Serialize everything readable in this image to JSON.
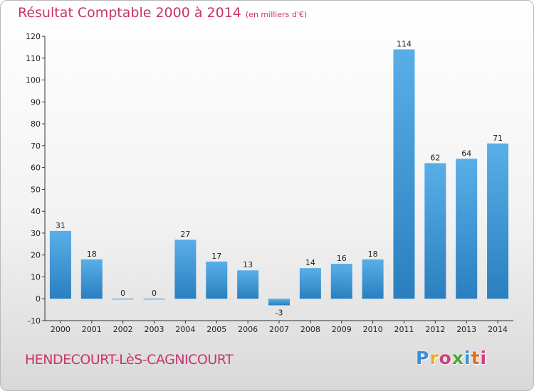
{
  "header": {
    "title": "Résultat Comptable 2000 à 2014",
    "unit": "(en milliers d'€)"
  },
  "footer": {
    "commune": "HENDECOURT-LèS-CAGNICOURT",
    "logo": "Proxiti"
  },
  "colors": {
    "title": "#c8346e",
    "bar_top": "#5aaee8",
    "bar_bottom": "#2a7fbf"
  },
  "chart_data": {
    "type": "bar",
    "title": "Résultat Comptable 2000 à 2014",
    "subtitle": "(en milliers d'€)",
    "categories": [
      "2000",
      "2001",
      "2002",
      "2003",
      "2004",
      "2005",
      "2006",
      "2007",
      "2008",
      "2009",
      "2010",
      "2011",
      "2012",
      "2013",
      "2014"
    ],
    "values": [
      31,
      18,
      0,
      0,
      27,
      17,
      13,
      -3,
      14,
      16,
      18,
      114,
      62,
      64,
      71
    ],
    "ylim": [
      -10,
      120
    ],
    "yticks": [
      -10,
      0,
      10,
      20,
      30,
      40,
      50,
      60,
      70,
      80,
      90,
      100,
      110,
      120
    ],
    "grid": false,
    "legend": "none"
  }
}
